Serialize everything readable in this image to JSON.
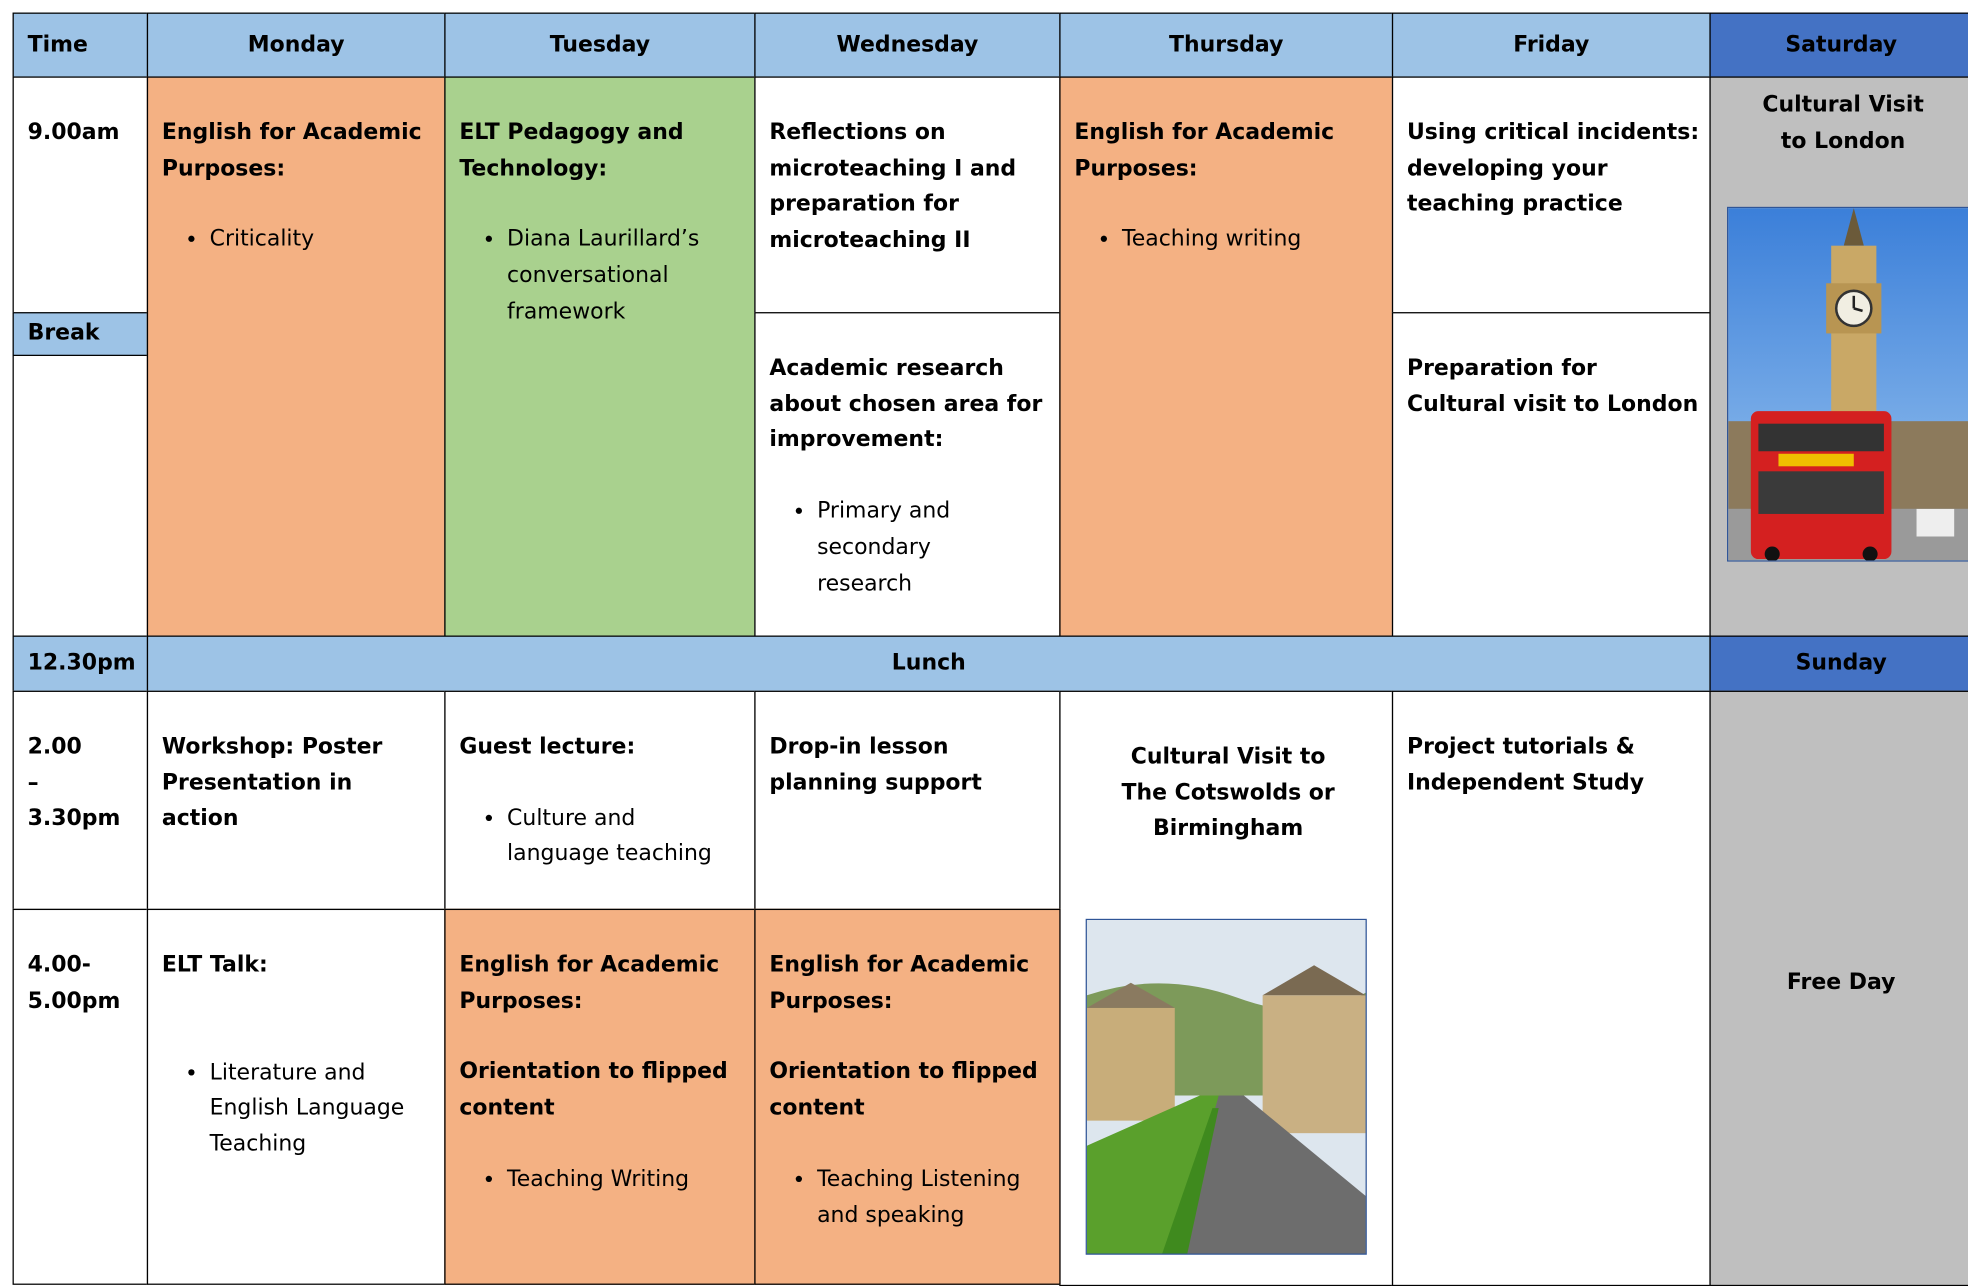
{
  "header": {
    "time": "Time",
    "days": [
      "Monday",
      "Tuesday",
      "Wednesday",
      "Thursday",
      "Friday",
      "Saturday"
    ]
  },
  "times": {
    "morning": "9.00am",
    "break": "Break",
    "lunch": "12.30pm",
    "afternoon_1": "2.00 – 3.30pm",
    "afternoon_2": "4.00- 5.00pm"
  },
  "morning": {
    "monday": {
      "title": "English for Academic Purposes:",
      "bullets": [
        "Criticality"
      ]
    },
    "tuesday": {
      "title": "ELT Pedagogy and Technology:",
      "bullets": [
        "Diana Laurillard’s conversational framework"
      ]
    },
    "wednesday_1": {
      "title": "Reflections on microteaching I and preparation for microteaching II"
    },
    "wednesday_2": {
      "title": "Academic research about chosen area for improvement:",
      "bullets": [
        "Primary and secondary research"
      ]
    },
    "thursday": {
      "title": "English for Academic Purposes:",
      "bullets": [
        "Teaching writing"
      ]
    },
    "friday_1": {
      "title": "Using critical incidents: developing your teaching practice"
    },
    "friday_2": {
      "title": "Preparation for Cultural visit to London"
    },
    "saturday": {
      "title": "Cultural Visit to London"
    }
  },
  "lunch": {
    "label": "Lunch",
    "sunday": "Sunday"
  },
  "afternoon": {
    "monday_1": {
      "title": "Workshop: Poster Presentation in action"
    },
    "tuesday_1": {
      "title": "Guest lecture:",
      "bullets": [
        "Culture and language teaching"
      ]
    },
    "wednesday_1": {
      "title": "Drop-in lesson planning support"
    },
    "thursday": {
      "title": "Cultural Visit to The Cotswolds or Birmingham"
    },
    "friday": {
      "title": "Project tutorials & Independent Study"
    },
    "monday_2": {
      "title": "ELT Talk:",
      "bullets": [
        "Literature and English Language Teaching"
      ]
    },
    "tuesday_2": {
      "title": "English for Academic Purposes:",
      "subtitle": "Orientation to flipped content",
      "bullets": [
        "Teaching Writing"
      ]
    },
    "wednesday_2": {
      "title": "English for Academic Purposes:",
      "subtitle": "Orientation to flipped content",
      "bullets": [
        "Teaching Listening and speaking"
      ]
    },
    "sunday": {
      "title": "Free Day"
    }
  }
}
